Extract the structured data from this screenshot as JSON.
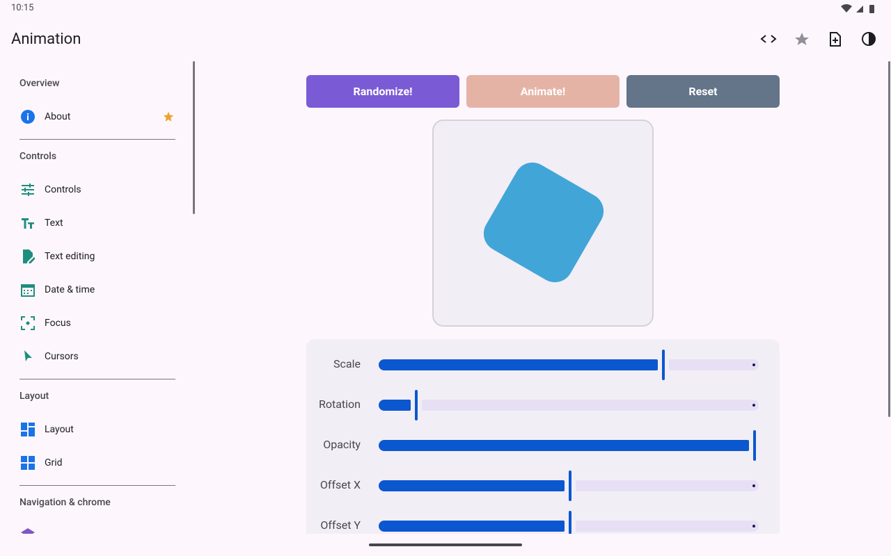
{
  "status_bar": {
    "time": "10:15"
  },
  "app_bar": {
    "title": "Animation"
  },
  "sidebar": {
    "sections": [
      {
        "header": "Overview",
        "items": [
          "About"
        ]
      },
      {
        "header": "Controls",
        "items": [
          "Controls",
          "Text",
          "Text editing",
          "Date & time",
          "Focus",
          "Cursors"
        ]
      },
      {
        "header": "Layout",
        "items": [
          "Layout",
          "Grid"
        ]
      },
      {
        "header": "Navigation & chrome",
        "items": []
      }
    ]
  },
  "buttons": [
    "Randomize!",
    "Animate!",
    "Reset"
  ],
  "sliders": [
    {
      "label": "Scale",
      "value": 0.745
    },
    {
      "label": "Rotation",
      "value": 0.095
    },
    {
      "label": "Opacity",
      "value": 1
    },
    {
      "label": "Offset X",
      "value": 0.5
    },
    {
      "label": "Offset Y",
      "value": 0.5
    }
  ]
}
